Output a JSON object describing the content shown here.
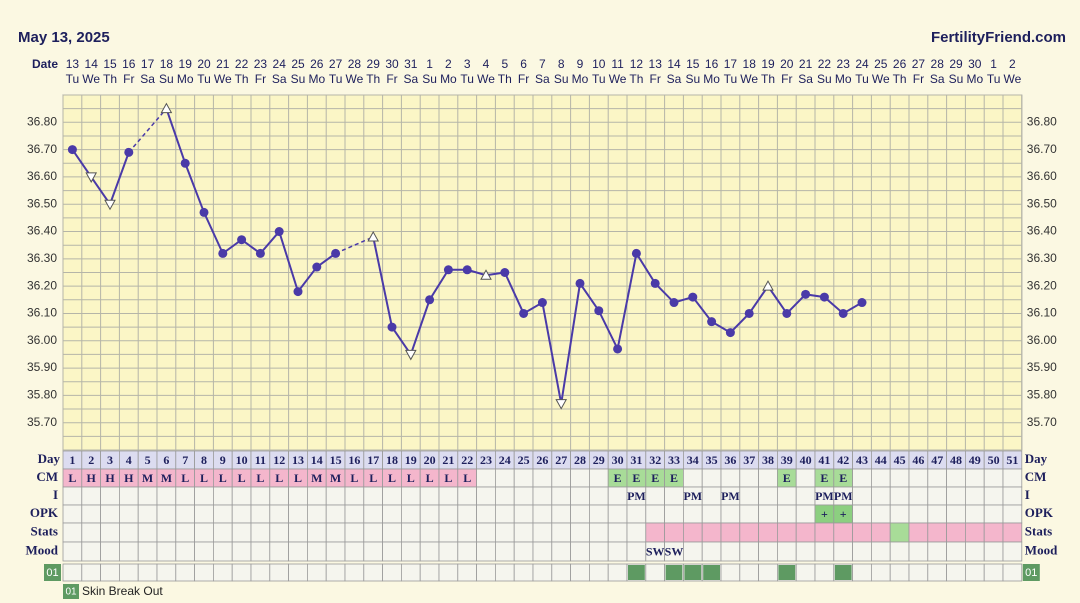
{
  "header": {
    "date": "May 13, 2025",
    "site": "FertilityFriend.com"
  },
  "chart_data": {
    "type": "line",
    "row_labels": {
      "date": "Date",
      "day": "Day",
      "cm": "CM",
      "i": "I",
      "opk": "OPK",
      "stats": "Stats",
      "mood": "Mood"
    },
    "dates": [
      13,
      14,
      15,
      16,
      17,
      18,
      19,
      20,
      21,
      22,
      23,
      24,
      25,
      26,
      27,
      28,
      29,
      30,
      31,
      1,
      2,
      3,
      4,
      5,
      6,
      7,
      8,
      9,
      10,
      11,
      12,
      13,
      14,
      15,
      16,
      17,
      18,
      19,
      20,
      21,
      22,
      23,
      24,
      25,
      26,
      27,
      28,
      29,
      30,
      1,
      2
    ],
    "weekdays": [
      "Tu",
      "We",
      "Th",
      "Fr",
      "Sa",
      "Su",
      "Mo",
      "Tu",
      "We",
      "Th",
      "Fr",
      "Sa",
      "Su",
      "Mo",
      "Tu",
      "We",
      "Th",
      "Fr",
      "Sa",
      "Su",
      "Mo",
      "Tu",
      "We",
      "Th",
      "Fr",
      "Sa",
      "Su",
      "Mo",
      "Tu",
      "We",
      "Th",
      "Fr",
      "Sa",
      "Su",
      "Mo",
      "Tu",
      "We",
      "Th",
      "Fr",
      "Sa",
      "Su",
      "Mo",
      "Tu",
      "We",
      "Th",
      "Fr",
      "Sa",
      "Su",
      "Mo",
      "Tu",
      "We"
    ],
    "categories": [
      1,
      2,
      3,
      4,
      5,
      6,
      7,
      8,
      9,
      10,
      11,
      12,
      13,
      14,
      15,
      16,
      17,
      18,
      19,
      20,
      21,
      22,
      23,
      24,
      25,
      26,
      27,
      28,
      29,
      30,
      31,
      32,
      33,
      34,
      35,
      36,
      37,
      38,
      39,
      40,
      41,
      42,
      43,
      44,
      45,
      46,
      47,
      48,
      49,
      50,
      51
    ],
    "series": [
      {
        "color": "#4a3aa8",
        "values": [
          36.7,
          36.6,
          36.5,
          36.69,
          null,
          36.85,
          36.65,
          36.47,
          36.32,
          36.37,
          36.32,
          36.4,
          36.18,
          36.27,
          36.32,
          null,
          36.38,
          36.05,
          35.95,
          36.15,
          36.26,
          36.26,
          36.24,
          36.25,
          36.1,
          36.14,
          35.77,
          36.21,
          36.11,
          35.97,
          36.32,
          36.21,
          36.14,
          36.16,
          36.07,
          36.03,
          36.1,
          36.2,
          36.1,
          36.17,
          36.16,
          36.1,
          36.14,
          null,
          null,
          null,
          null,
          null,
          null,
          null,
          null
        ],
        "markers": [
          "filled",
          "open-down",
          "open-down",
          "filled",
          null,
          "open-up",
          "filled",
          "filled",
          "filled",
          "filled",
          "filled",
          "filled",
          "filled",
          "filled",
          "filled",
          null,
          "open-up",
          "filled",
          "open-down",
          "filled",
          "filled",
          "filled",
          "open-up",
          "filled",
          "filled",
          "filled",
          "open-down",
          "filled",
          "filled",
          "filled",
          "filled",
          "filled",
          "filled",
          "filled",
          "filled",
          "filled",
          "filled",
          "open-up",
          "filled",
          "filled",
          "filled",
          "filled",
          "filled",
          null,
          null,
          null,
          null,
          null,
          null,
          null,
          null
        ]
      }
    ],
    "ylim": [
      35.6,
      36.9
    ],
    "yticks": [
      {
        "value": 36.8,
        "label": "36.80"
      },
      {
        "value": 36.7,
        "label": "36.70"
      },
      {
        "value": 36.6,
        "label": "36.60"
      },
      {
        "value": 36.5,
        "label": "36.50"
      },
      {
        "value": 36.4,
        "label": "36.40"
      },
      {
        "value": 36.3,
        "label": "36.30"
      },
      {
        "value": 36.2,
        "label": "36.20"
      },
      {
        "value": 36.1,
        "label": "36.10"
      },
      {
        "value": 36.0,
        "label": "36.00"
      },
      {
        "value": 35.9,
        "label": "35.90"
      },
      {
        "value": 35.8,
        "label": "35.80"
      },
      {
        "value": 35.7,
        "label": "35.70"
      }
    ],
    "grid": true,
    "cm": [
      "L",
      "H",
      "H",
      "H",
      "M",
      "M",
      "L",
      "L",
      "L",
      "L",
      "L",
      "L",
      "L",
      "M",
      "M",
      "L",
      "L",
      "L",
      "L",
      "L",
      "L",
      "L",
      null,
      null,
      null,
      null,
      null,
      null,
      null,
      "E",
      "E",
      "E",
      "E",
      null,
      null,
      null,
      null,
      null,
      "E",
      null,
      "E",
      "E",
      null,
      null,
      null,
      null,
      null,
      null,
      null,
      null,
      null
    ],
    "i": [
      null,
      null,
      null,
      null,
      null,
      null,
      null,
      null,
      null,
      null,
      null,
      null,
      null,
      null,
      null,
      null,
      null,
      null,
      null,
      null,
      null,
      null,
      null,
      null,
      null,
      null,
      null,
      null,
      null,
      null,
      "PM",
      null,
      null,
      "PM",
      null,
      "PM",
      null,
      null,
      null,
      null,
      "PM",
      "PM",
      null,
      null,
      null,
      null,
      null,
      null,
      null,
      null,
      null
    ],
    "opk": [
      null,
      null,
      null,
      null,
      null,
      null,
      null,
      null,
      null,
      null,
      null,
      null,
      null,
      null,
      null,
      null,
      null,
      null,
      null,
      null,
      null,
      null,
      null,
      null,
      null,
      null,
      null,
      null,
      null,
      null,
      null,
      null,
      null,
      null,
      null,
      null,
      null,
      null,
      null,
      null,
      "+",
      "+",
      null,
      null,
      null,
      null,
      null,
      null,
      null,
      null,
      null
    ],
    "stats": [
      null,
      null,
      null,
      null,
      null,
      null,
      null,
      null,
      null,
      null,
      null,
      null,
      null,
      null,
      null,
      null,
      null,
      null,
      null,
      null,
      null,
      null,
      null,
      null,
      null,
      null,
      null,
      null,
      null,
      null,
      null,
      "#f4b6cc",
      "#f4b6cc",
      "#f4b6cc",
      "#f4b6cc",
      "#f4b6cc",
      "#f4b6cc",
      "#f4b6cc",
      "#f4b6cc",
      "#f4b6cc",
      "#f4b6cc",
      "#f4b6cc",
      "#f4b6cc",
      "#f4b6cc",
      "#a8dc98",
      "#f4b6cc",
      "#f4b6cc",
      "#f4b6cc",
      "#f4b6cc",
      "#f4b6cc",
      "#f4b6cc"
    ],
    "mood": [
      null,
      null,
      null,
      null,
      null,
      null,
      null,
      null,
      null,
      null,
      null,
      null,
      null,
      null,
      null,
      null,
      null,
      null,
      null,
      null,
      null,
      null,
      null,
      null,
      null,
      null,
      null,
      null,
      null,
      null,
      null,
      "SW",
      "SW",
      null,
      null,
      null,
      null,
      null,
      null,
      null,
      null,
      null,
      null,
      null,
      null,
      null,
      null,
      null,
      null,
      null,
      null
    ],
    "symptom": {
      "code": "01",
      "name": "Skin Break Out",
      "color": "#5e9a62",
      "days": [
        31,
        33,
        34,
        35,
        39,
        42
      ]
    }
  }
}
